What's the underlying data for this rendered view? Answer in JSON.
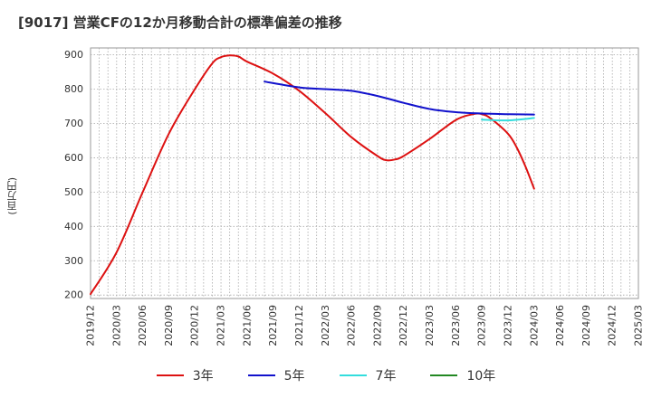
{
  "chart_data": {
    "type": "line",
    "title": "[9017]  営業CFの12か月移動合計の標準偏差の推移",
    "ylabel": "(百万円)",
    "ylim": [
      190,
      920
    ],
    "yticks": [
      200,
      300,
      400,
      500,
      600,
      700,
      800,
      900
    ],
    "x_ticks": [
      "2019/12",
      "2020/03",
      "2020/06",
      "2020/09",
      "2020/12",
      "2021/03",
      "2021/06",
      "2021/09",
      "2021/12",
      "2022/03",
      "2022/06",
      "2022/09",
      "2022/12",
      "2023/03",
      "2023/06",
      "2023/09",
      "2023/12",
      "2024/03",
      "2024/06",
      "2024/09",
      "2024/12",
      "2025/03"
    ],
    "grid": true,
    "legend_position": "bottom",
    "series": [
      {
        "name": "3年",
        "color": "#dd1111",
        "points": [
          [
            "2019/12",
            203
          ],
          [
            "2020/03",
            325
          ],
          [
            "2020/06",
            500
          ],
          [
            "2020/09",
            670
          ],
          [
            "2020/12",
            800
          ],
          [
            "2021/02",
            875
          ],
          [
            "2021/03",
            893
          ],
          [
            "2021/04",
            898
          ],
          [
            "2021/05",
            895
          ],
          [
            "2021/06",
            880
          ],
          [
            "2021/09",
            845
          ],
          [
            "2021/12",
            795
          ],
          [
            "2022/03",
            730
          ],
          [
            "2022/06",
            660
          ],
          [
            "2022/09",
            605
          ],
          [
            "2022/10",
            593
          ],
          [
            "2022/11",
            595
          ],
          [
            "2022/12",
            605
          ],
          [
            "2023/03",
            655
          ],
          [
            "2023/06",
            710
          ],
          [
            "2023/08",
            727
          ],
          [
            "2023/09",
            727
          ],
          [
            "2023/10",
            715
          ],
          [
            "2023/12",
            670
          ],
          [
            "2024/01",
            630
          ],
          [
            "2024/02",
            575
          ],
          [
            "2024/03",
            510
          ]
        ]
      },
      {
        "name": "5年",
        "color": "#1111cc",
        "points": [
          [
            "2021/08",
            822
          ],
          [
            "2021/12",
            805
          ],
          [
            "2022/03",
            800
          ],
          [
            "2022/06",
            795
          ],
          [
            "2022/09",
            780
          ],
          [
            "2022/12",
            760
          ],
          [
            "2023/03",
            742
          ],
          [
            "2023/06",
            733
          ],
          [
            "2023/09",
            729
          ],
          [
            "2023/12",
            727
          ],
          [
            "2024/03",
            726
          ]
        ]
      },
      {
        "name": "7年",
        "color": "#33dddd",
        "points": [
          [
            "2023/09",
            711
          ],
          [
            "2023/12",
            709
          ],
          [
            "2024/03",
            716
          ]
        ]
      },
      {
        "name": "10年",
        "color": "#228822",
        "points": []
      }
    ]
  }
}
